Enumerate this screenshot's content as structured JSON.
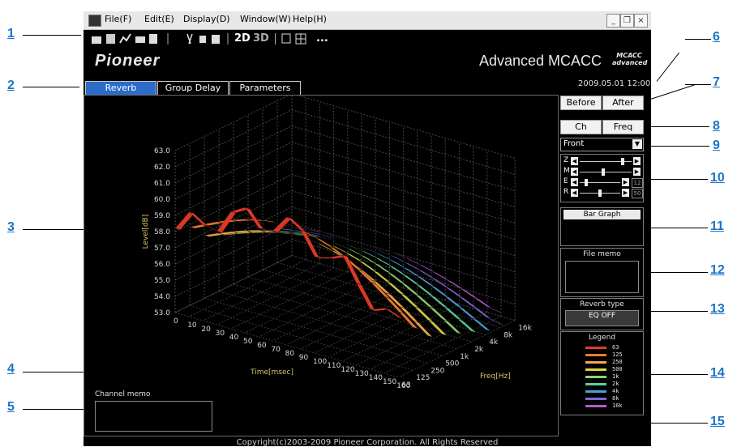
{
  "menu": [
    "File(F)",
    "Edit(E)",
    "Display(D)",
    "Window(W)",
    "Help(H)"
  ],
  "toolbar": {
    "btn_2d": "2D",
    "btn_3d": "3D",
    "more": "..."
  },
  "window_controls": {
    "minimize": "_",
    "maximize": "❐",
    "close": "×"
  },
  "brand": {
    "logo": "Pioneer",
    "product": "Advanced MCACC",
    "badge": "MCACC advanced"
  },
  "timestamp": "2009.05.01 12:00",
  "tabs": [
    "Reverb",
    "Group Delay",
    "Parameters"
  ],
  "active_tab": "Reverb",
  "before_after": [
    "Before",
    "After"
  ],
  "ch_freq": [
    "Ch",
    "Freq"
  ],
  "channel_select": "Front",
  "sliders": [
    {
      "label": "Z",
      "level": 0.85,
      "value": ""
    },
    {
      "label": "M",
      "level": 0.45,
      "value": ""
    },
    {
      "label": "E",
      "level": 0.12,
      "value": "12"
    },
    {
      "label": "R",
      "level": 0.5,
      "value": "50"
    }
  ],
  "panels": {
    "bar_graph": "Bar Graph",
    "file_memo": "File memo",
    "reverb_type": "Reverb type",
    "reverb_value": "EQ OFF",
    "legend": "Legend",
    "channel_memo": "Channel memo"
  },
  "legend_items": [
    {
      "label": "63",
      "color": "#e53a2a"
    },
    {
      "label": "125",
      "color": "#f07a2e"
    },
    {
      "label": "250",
      "color": "#f2a84a"
    },
    {
      "label": "500",
      "color": "#d8d24a"
    },
    {
      "label": "1k",
      "color": "#8cd36b"
    },
    {
      "label": "2k",
      "color": "#5fcf9a"
    },
    {
      "label": "4k",
      "color": "#4c9fd6"
    },
    {
      "label": "8k",
      "color": "#7b6ad8"
    },
    {
      "label": "16k",
      "color": "#b65ad0"
    }
  ],
  "copyright": "Copyright(c)2003-2009 Pioneer Corporation. All Rights Reserved",
  "callouts": [
    "1",
    "2",
    "3",
    "4",
    "5",
    "6",
    "7",
    "8",
    "9",
    "10",
    "11",
    "12",
    "13",
    "14",
    "15"
  ],
  "chart_data": {
    "type": "surface3d",
    "xlabel": "Time[msec]",
    "ylabel": "Level[dB]",
    "zlabel": "Freq[Hz]",
    "x_ticks": [
      "0",
      "10",
      "20",
      "30",
      "40",
      "50",
      "60",
      "70",
      "80",
      "90",
      "100",
      "110",
      "120",
      "130",
      "140",
      "150",
      "160"
    ],
    "y_ticks": [
      "53.0",
      "54.0",
      "55.0",
      "56.0",
      "57.0",
      "58.0",
      "59.0",
      "60.0",
      "61.0",
      "62.0",
      "63.0"
    ],
    "z_ticks": [
      "63",
      "125",
      "250",
      "500",
      "1k",
      "2k",
      "4k",
      "8k",
      "16k"
    ],
    "ylim": [
      53.0,
      63.0
    ]
  }
}
